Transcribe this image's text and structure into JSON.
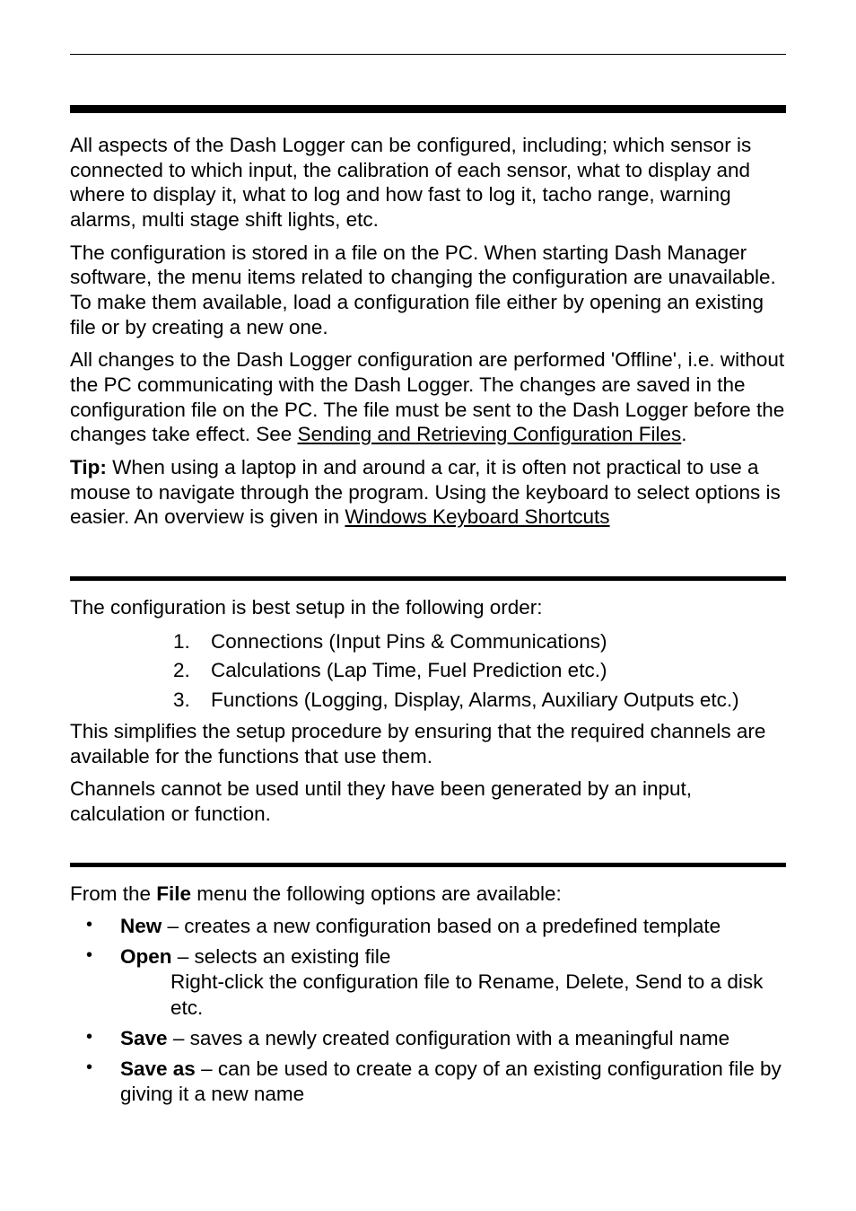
{
  "intro": {
    "p1": "All aspects of the Dash Logger can be configured, including; which sensor is connected to which input, the calibration of each sensor, what to display and where to display it, what to log and how fast to log it, tacho range, warning alarms, multi stage shift lights, etc.",
    "p2": "The configuration is stored in a file on the PC. When starting Dash Manager software, the menu items related to changing the configuration are unavailable. To make them available, load a configuration file either by opening an existing file or by creating a new one.",
    "p3a": "All changes to the Dash Logger configuration are performed 'Offline', i.e. without the PC communicating with the Dash Logger. The changes are saved in the configuration file on the PC. The file must be sent to the Dash Logger before the changes take effect. See ",
    "p3_link": "Sending and Retrieving Configuration Files",
    "p3b": ".",
    "tip_label": "Tip: ",
    "tip_a": "When using a laptop in and around a car, it is often not practical to use a mouse to navigate through the program. Using the keyboard to select options is easier. An overview is given in ",
    "tip_link": "Windows Keyboard Shortcuts"
  },
  "order": {
    "lead": "The configuration is best setup in the following order:",
    "items": [
      {
        "n": "1.",
        "t": "Connections (Input Pins & Communications)"
      },
      {
        "n": "2.",
        "t": "Calculations (Lap Time, Fuel Prediction etc.)"
      },
      {
        "n": "3.",
        "t": "Functions (Logging, Display, Alarms, Auxiliary Outputs etc.)"
      }
    ],
    "p_after1": "This simplifies the setup procedure by ensuring that the required channels are available for the functions that use them.",
    "p_after2": "Channels cannot be used until they have been generated by an input, calculation or function."
  },
  "file": {
    "lead_a": "From the ",
    "lead_bold": "File ",
    "lead_b": "menu the following options are available:",
    "items": [
      {
        "bold": "New ",
        "rest": "– creates a new configuration based on a predefined template"
      },
      {
        "bold": "Open ",
        "rest": "– selects an existing file",
        "cont": "Right-click the configuration file to Rename, Delete, Send to a disk etc."
      },
      {
        "bold": "Save ",
        "rest": "– saves a newly created  configuration with a meaningful name"
      },
      {
        "bold": "Save as ",
        "rest": "– can be used to create a copy of an existing configuration file by giving it a new name"
      }
    ]
  }
}
